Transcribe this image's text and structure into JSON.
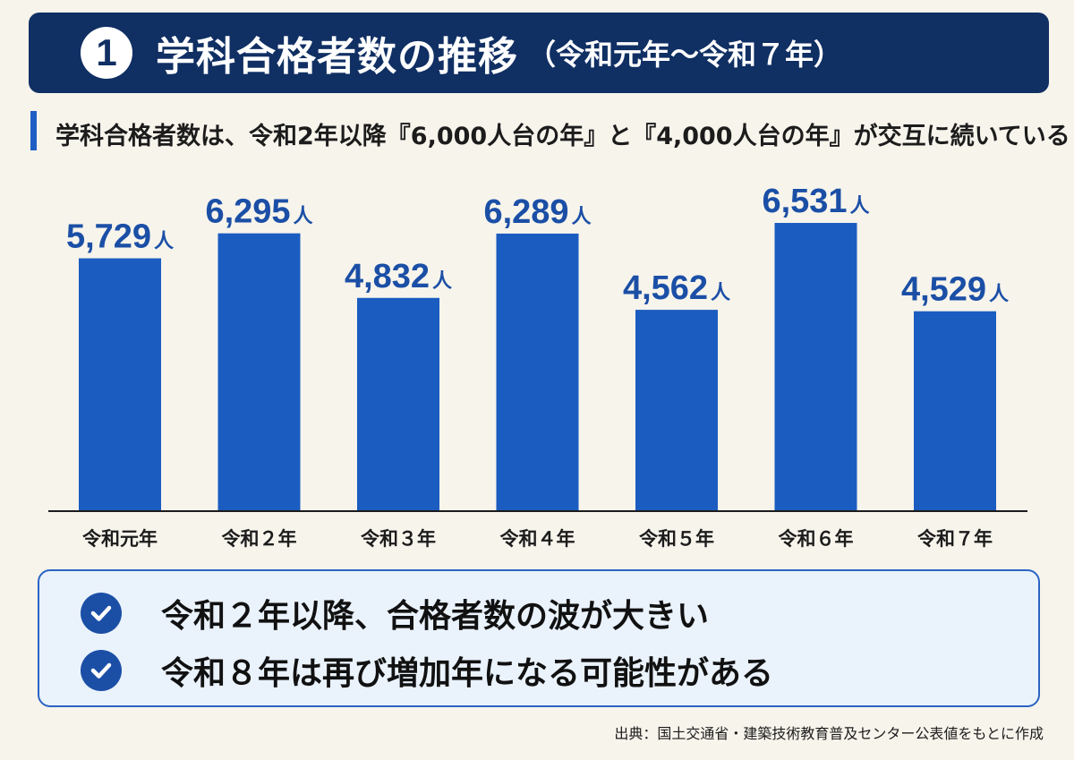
{
  "header": {
    "number": "1",
    "title": "学科合格者数の推移",
    "title_sub": "（令和元年～令和７年）"
  },
  "subtitle": "学科合格者数は、令和2年以降『6,000人台の年』と『4,000人台の年』が交互に続いている",
  "chart_data": {
    "type": "bar",
    "categories": [
      "令和元年",
      "令和２年",
      "令和３年",
      "令和４年",
      "令和５年",
      "令和６年",
      "令和７年"
    ],
    "values": [
      5729,
      6295,
      4832,
      6289,
      4562,
      6531,
      4529
    ],
    "value_labels": [
      "5,729",
      "6,295",
      "4,832",
      "6,289",
      "4,562",
      "6,531",
      "4,529"
    ],
    "unit": "人",
    "bar_color": "#1b5cc0",
    "title": "",
    "xlabel": "",
    "ylabel": "",
    "ylim": [
      0,
      7000
    ],
    "grid": false,
    "legend": "none"
  },
  "summary": {
    "items": [
      "令和２年以降、合格者数の波が大きい",
      "令和８年は再び増加年になる可能性がある"
    ],
    "icon": "check-circle-icon"
  },
  "source": "出典：国土交通省・建築技術教育普及センター公表値をもとに作成",
  "colors": {
    "background": "#f7f4ec",
    "banner": "#102f63",
    "accent": "#1b4fa6",
    "summary_bg": "#eaf2fc"
  }
}
